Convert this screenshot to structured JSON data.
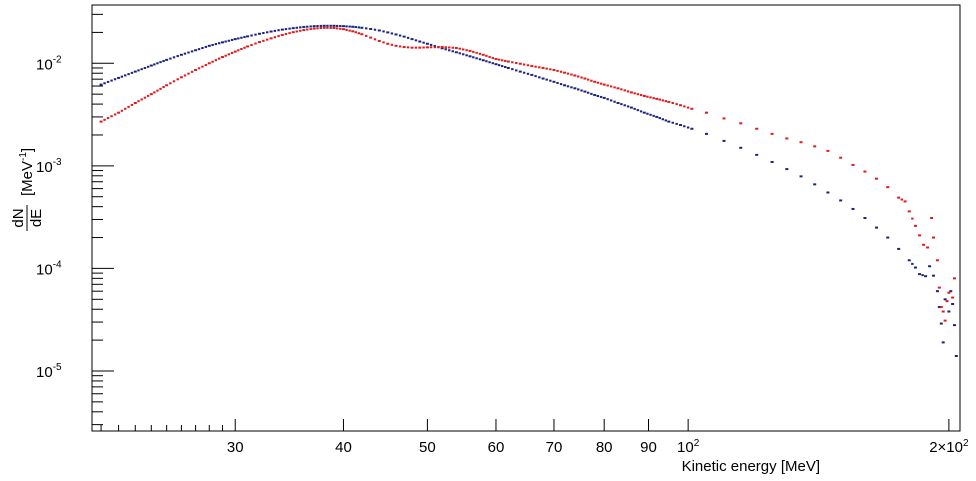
{
  "chart_data": {
    "type": "scatter",
    "xlabel": "Kinetic energy [MeV]",
    "ylabel": {
      "numerator": "dN",
      "denominator": "dE",
      "unit": "[MeV",
      "unit_exp": "-1",
      "unit_close": "]"
    },
    "x_scale": "log",
    "y_scale": "log",
    "xlim": [
      20.5,
      206
    ],
    "ylim": [
      2.6e-06,
      0.037
    ],
    "grid": false,
    "legend": "none",
    "x_ticks": [
      {
        "value": 30,
        "label": "30"
      },
      {
        "value": 40,
        "label": "40"
      },
      {
        "value": 50,
        "label": "50"
      },
      {
        "value": 60,
        "label": "60"
      },
      {
        "value": 70,
        "label": "70"
      },
      {
        "value": 80,
        "label": "80"
      },
      {
        "value": 90,
        "label": "90"
      },
      {
        "value": 100,
        "label": "10",
        "exp": "2"
      },
      {
        "value": 200,
        "label": "2×10",
        "exp": "2"
      }
    ],
    "y_ticks": [
      {
        "value": 0.01,
        "label": "10",
        "exp": "-2"
      },
      {
        "value": 0.001,
        "label": "10",
        "exp": "-3"
      },
      {
        "value": 0.0001,
        "label": "10",
        "exp": "-4"
      },
      {
        "value": 1e-05,
        "label": "10",
        "exp": "-5"
      }
    ],
    "series": [
      {
        "color": "#1a237e",
        "points": [
          [
            21,
            0.0062
          ],
          [
            22,
            0.0072
          ],
          [
            23,
            0.0083
          ],
          [
            24,
            0.0095
          ],
          [
            25,
            0.0108
          ],
          [
            26,
            0.0121
          ],
          [
            27,
            0.0134
          ],
          [
            28,
            0.0148
          ],
          [
            29,
            0.016
          ],
          [
            30,
            0.0172
          ],
          [
            31,
            0.0183
          ],
          [
            32,
            0.0194
          ],
          [
            33,
            0.0204
          ],
          [
            34,
            0.0213
          ],
          [
            35,
            0.022
          ],
          [
            36,
            0.0226
          ],
          [
            37,
            0.023
          ],
          [
            38,
            0.0232
          ],
          [
            39,
            0.0232
          ],
          [
            40,
            0.023
          ],
          [
            41,
            0.0227
          ],
          [
            42,
            0.0222
          ],
          [
            43,
            0.0216
          ],
          [
            44,
            0.0209
          ],
          [
            45,
            0.02
          ],
          [
            46,
            0.0191
          ],
          [
            47,
            0.0182
          ],
          [
            48,
            0.0172
          ],
          [
            49,
            0.0163
          ],
          [
            50,
            0.0155
          ],
          [
            52,
            0.014
          ],
          [
            54,
            0.0128
          ],
          [
            56,
            0.0117
          ],
          [
            58,
            0.0107
          ],
          [
            60,
            0.0098
          ],
          [
            62,
            0.009
          ],
          [
            64,
            0.0083
          ],
          [
            66,
            0.0077
          ],
          [
            68,
            0.0071
          ],
          [
            70,
            0.0066
          ],
          [
            72,
            0.0061
          ],
          [
            74,
            0.0057
          ],
          [
            76,
            0.0053
          ],
          [
            78,
            0.0049
          ],
          [
            80,
            0.0046
          ],
          [
            83,
            0.0041
          ],
          [
            86,
            0.0037
          ],
          [
            89,
            0.0033
          ],
          [
            92,
            0.003
          ],
          [
            95,
            0.0027
          ],
          [
            98,
            0.0025
          ],
          [
            101,
            0.0023
          ],
          [
            105,
            0.00205
          ],
          [
            110,
            0.00175
          ],
          [
            115,
            0.0015
          ],
          [
            120,
            0.00128
          ],
          [
            125,
            0.00109
          ],
          [
            130,
            0.00093
          ],
          [
            135,
            0.00079
          ],
          [
            140,
            0.00066
          ],
          [
            145,
            0.00055
          ],
          [
            150,
            0.00046
          ],
          [
            155,
            0.00038
          ],
          [
            160,
            0.00031
          ],
          [
            165,
            0.00025
          ],
          [
            170,
            0.0002
          ],
          [
            175,
            0.000155
          ],
          [
            180,
            0.00012
          ],
          [
            183,
            0.000102
          ],
          [
            185,
            8.8e-05
          ],
          [
            188,
            8.4e-05
          ],
          [
            190,
            0.000105
          ],
          [
            192,
            8.5e-05
          ],
          [
            194,
            6e-05
          ],
          [
            195,
            4.2e-05
          ],
          [
            196,
            2.9e-05
          ],
          [
            197,
            1.9e-05
          ],
          [
            198,
            5e-05
          ],
          [
            200,
            3.8e-05
          ],
          [
            201,
            6e-05
          ],
          [
            202,
            4.5e-05
          ],
          [
            203,
            2.8e-05
          ],
          [
            204,
            1.4e-05
          ]
        ]
      },
      {
        "color": "#e31a1c",
        "points": [
          [
            21,
            0.0027
          ],
          [
            22,
            0.0033
          ],
          [
            23,
            0.0041
          ],
          [
            24,
            0.005
          ],
          [
            25,
            0.0061
          ],
          [
            26,
            0.0073
          ],
          [
            27,
            0.0086
          ],
          [
            28,
            0.01
          ],
          [
            29,
            0.0115
          ],
          [
            30,
            0.013
          ],
          [
            31,
            0.0146
          ],
          [
            32,
            0.0161
          ],
          [
            33,
            0.0175
          ],
          [
            34,
            0.0189
          ],
          [
            35,
            0.0201
          ],
          [
            36,
            0.0211
          ],
          [
            37,
            0.0218
          ],
          [
            38,
            0.0222
          ],
          [
            39,
            0.0221
          ],
          [
            40,
            0.0215
          ],
          [
            41,
            0.0205
          ],
          [
            42,
            0.0192
          ],
          [
            43,
            0.0178
          ],
          [
            44,
            0.0165
          ],
          [
            45,
            0.0155
          ],
          [
            46,
            0.0148
          ],
          [
            47,
            0.0144
          ],
          [
            48,
            0.0142
          ],
          [
            49,
            0.0142
          ],
          [
            50,
            0.0143
          ],
          [
            52,
            0.0144
          ],
          [
            54,
            0.0141
          ],
          [
            56,
            0.0132
          ],
          [
            58,
            0.0121
          ],
          [
            60,
            0.011
          ],
          [
            62,
            0.0104
          ],
          [
            64,
            0.0099
          ],
          [
            66,
            0.0094
          ],
          [
            68,
            0.009
          ],
          [
            70,
            0.0086
          ],
          [
            72,
            0.0081
          ],
          [
            74,
            0.0076
          ],
          [
            76,
            0.0071
          ],
          [
            78,
            0.0066
          ],
          [
            80,
            0.0062
          ],
          [
            83,
            0.0057
          ],
          [
            86,
            0.0052
          ],
          [
            89,
            0.0048
          ],
          [
            92,
            0.0045
          ],
          [
            95,
            0.0042
          ],
          [
            98,
            0.0039
          ],
          [
            101,
            0.0036
          ],
          [
            105,
            0.0033
          ],
          [
            110,
            0.0029
          ],
          [
            115,
            0.0026
          ],
          [
            120,
            0.0023
          ],
          [
            125,
            0.00205
          ],
          [
            130,
            0.00185
          ],
          [
            135,
            0.0017
          ],
          [
            140,
            0.00155
          ],
          [
            145,
            0.0014
          ],
          [
            150,
            0.0012
          ],
          [
            155,
            0.00102
          ],
          [
            160,
            0.00088
          ],
          [
            165,
            0.00075
          ],
          [
            170,
            0.00062
          ],
          [
            175,
            0.00049
          ],
          [
            178,
            0.00045
          ],
          [
            180,
            0.00036
          ],
          [
            183,
            0.00026
          ],
          [
            185,
            0.00021
          ],
          [
            187,
            0.00017
          ],
          [
            189,
            0.00016
          ],
          [
            191,
            0.00031
          ],
          [
            192,
            0.0002
          ],
          [
            194,
            0.00012
          ],
          [
            195,
            6.5e-05
          ],
          [
            196,
            4.2e-05
          ],
          [
            197,
            3.8e-05
          ],
          [
            198,
            3.1e-05
          ],
          [
            199,
            4.8e-05
          ],
          [
            200,
            5.8e-05
          ],
          [
            202,
            5.2e-05
          ],
          [
            203,
            8e-05
          ]
        ]
      }
    ]
  }
}
